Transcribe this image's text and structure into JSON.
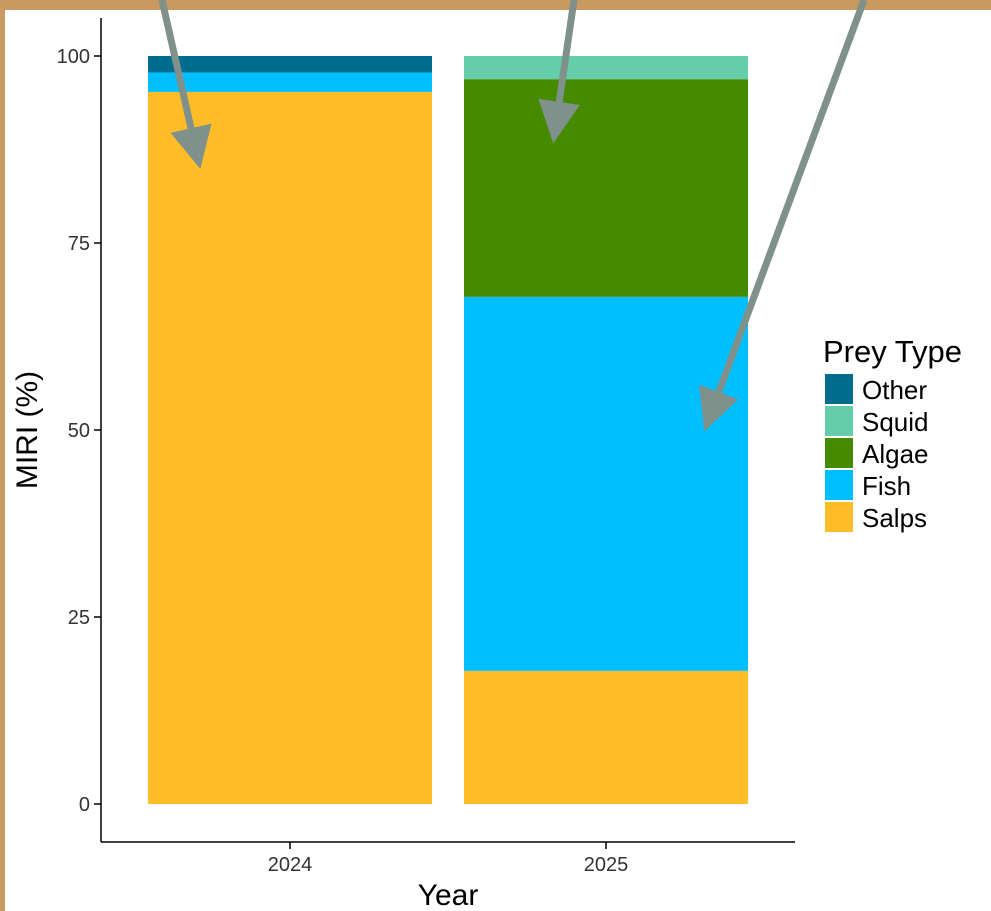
{
  "chart_data": {
    "type": "bar",
    "stacked": true,
    "categories": [
      "2024",
      "2025"
    ],
    "series": [
      {
        "name": "Salps",
        "color": "#FFBE29",
        "values": [
          95.2,
          17.8
        ]
      },
      {
        "name": "Fish",
        "color": "#00BFFF",
        "values": [
          2.6,
          50.0
        ]
      },
      {
        "name": "Algae",
        "color": "#468A00",
        "values": [
          0.0,
          29.1
        ]
      },
      {
        "name": "Squid",
        "color": "#66CDAA",
        "values": [
          0.0,
          3.1
        ]
      },
      {
        "name": "Other",
        "color": "#006D8F",
        "values": [
          2.2,
          0.0
        ]
      }
    ],
    "xlabel": "Year",
    "ylabel": "MIRI (%)",
    "ylim": [
      0,
      100
    ],
    "yticks": [
      0,
      25,
      50,
      75,
      100
    ],
    "legend": {
      "title": "Prey Type",
      "placement": "right",
      "order": [
        "Other",
        "Squid",
        "Algae",
        "Fish",
        "Salps"
      ]
    },
    "grid": false,
    "annotations": [
      {
        "type": "arrow",
        "color": "#7F918A",
        "points_to": "2024 Salps"
      },
      {
        "type": "arrow",
        "color": "#7F918A",
        "points_to": "2025 Algae"
      },
      {
        "type": "arrow",
        "color": "#7F918A",
        "points_to": "2025 Fish"
      }
    ]
  }
}
